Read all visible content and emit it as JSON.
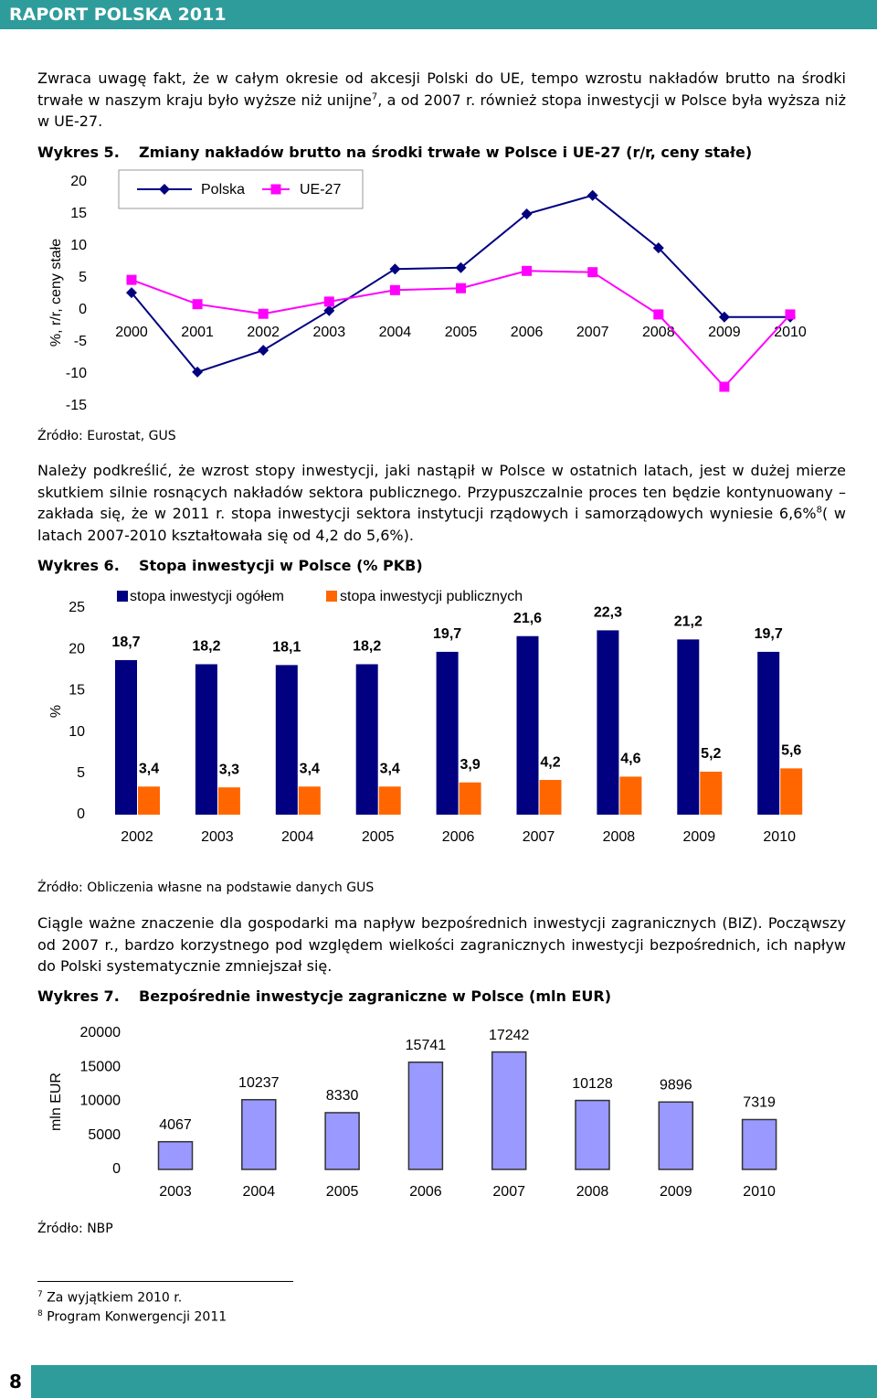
{
  "header": {
    "title": "RAPORT POLSKA 2011"
  },
  "paragraphs": [
    [
      {
        "text": "Zwraca uwagę fakt, że w całym okresie od akcesji Polski do UE, tempo wzrostu nakładów  brutto na środki trwałe w naszym kraju było wyższe niż unijne"
      },
      {
        "sup": "7"
      },
      {
        "text": ", a od 2007 r. również  stopa inwestycji  w Polsce była wyższa niż w UE-27."
      }
    ],
    [
      {
        "text": "Należy podkreślić, że wzrost stopy inwestycji, jaki nastąpił w Polsce w ostatnich latach, jest w dużej mierze skutkiem silnie rosnących nakładów sektora publicznego. Przypuszczalnie proces ten będzie kontynuowany – zakłada się, że w 2011 r. stopa inwestycji sektora instytucji rządowych i samorządowych wyniesie 6,6%"
      },
      {
        "sup": "8"
      },
      {
        "text": "( w latach 2007-2010 kształtowała się od 4,2 do 5,6%)."
      }
    ],
    [
      {
        "text": "Ciągle ważne znaczenie dla gospodarki ma napływ bezpośrednich inwestycji zagranicznych (BIZ). Począwszy od 2007 r., bardzo korzystnego pod względem wielkości zagranicznych inwestycji bezpośrednich, ich napływ do Polski systematycznie zmniejszał się."
      }
    ]
  ],
  "chart_data": [
    {
      "type": "line",
      "label": "Wykres 5.",
      "title": "Zmiany nakładów brutto na środki trwałe w Polsce i UE-27 (r/r, ceny stałe)",
      "y_label": "%, r/r, ceny stałe",
      "source": "Źródło: Eurostat, GUS",
      "categories": [
        "2000",
        "2001",
        "2002",
        "2003",
        "2004",
        "2005",
        "2006",
        "2007",
        "2008",
        "2009",
        "2010"
      ],
      "series": [
        {
          "name": "Polska",
          "color": "#000080",
          "marker": "diamond",
          "values": [
            2.7,
            -9.7,
            -6.3,
            -0.1,
            6.4,
            6.6,
            15.0,
            17.9,
            9.7,
            -1.1,
            -1.1
          ]
        },
        {
          "name": "UE-27",
          "color": "#ff00ff",
          "marker": "square",
          "values": [
            4.7,
            0.9,
            -0.6,
            1.3,
            3.1,
            3.4,
            6.1,
            5.9,
            -0.7,
            -12.0,
            -0.7
          ]
        }
      ],
      "ylim": [
        -15,
        20
      ],
      "yticks": [
        -15,
        -10,
        -5,
        0,
        5,
        10,
        15,
        20
      ]
    },
    {
      "type": "bar",
      "label": "Wykres 6.",
      "title": "Stopa inwestycji w Polsce (% PKB)",
      "y_label": "%",
      "source": "Źródło: Obliczenia własne na podstawie danych GUS",
      "categories": [
        "2002",
        "2003",
        "2004",
        "2005",
        "2006",
        "2007",
        "2008",
        "2009",
        "2010"
      ],
      "series": [
        {
          "name": "stopa inwestycji ogółem",
          "color": "#000080",
          "values": [
            18.7,
            18.2,
            18.1,
            18.2,
            19.7,
            21.6,
            22.3,
            21.2,
            19.7
          ],
          "value_labels": [
            "18,7",
            "18,2",
            "18,1",
            "18,2",
            "19,7",
            "21,6",
            "22,3",
            "21,2",
            "19,7"
          ]
        },
        {
          "name": "stopa inwestycji publicznych",
          "color": "#ff6600",
          "values": [
            3.4,
            3.3,
            3.4,
            3.4,
            3.9,
            4.2,
            4.6,
            5.2,
            5.6
          ],
          "value_labels": [
            "3,4",
            "3,3",
            "3,4",
            "3,4",
            "3,9",
            "4,2",
            "4,6",
            "5,2",
            "5,6"
          ]
        }
      ],
      "ylim": [
        0,
        25
      ],
      "yticks": [
        0,
        5,
        10,
        15,
        20,
        25
      ]
    },
    {
      "type": "bar",
      "label": "Wykres 7.",
      "title": "Bezpośrednie inwestycje zagraniczne w Polsce  (mln EUR)",
      "y_label": "mln EUR",
      "source": "Źródło: NBP",
      "categories": [
        "2003",
        "2004",
        "2005",
        "2006",
        "2007",
        "2008",
        "2009",
        "2010"
      ],
      "values": [
        4067,
        10237,
        8330,
        15741,
        17242,
        10128,
        9896,
        7319
      ],
      "color": "#9999ff",
      "ylim": [
        0,
        20000
      ],
      "yticks": [
        0,
        5000,
        10000,
        15000,
        20000
      ]
    }
  ],
  "footnotes": [
    {
      "mark": "7",
      "text": "Za wyjątkiem 2010 r."
    },
    {
      "mark": "8",
      "text": "Program Konwergencji 2011"
    }
  ],
  "page_number": "8"
}
